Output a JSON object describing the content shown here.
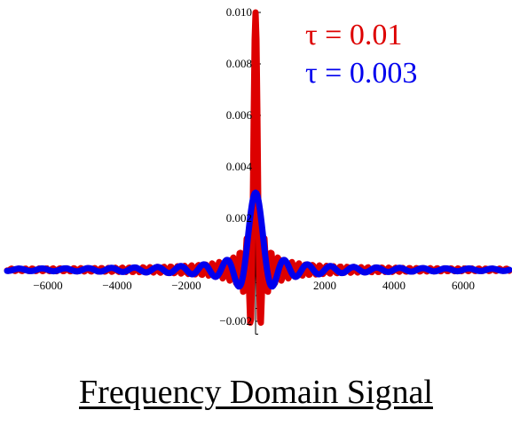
{
  "caption": "Frequency Domain Signal",
  "chart_data": {
    "type": "line",
    "title": "",
    "xlabel": "",
    "ylabel": "",
    "xlim": [
      -7000,
      7000
    ],
    "ylim": [
      -0.0025,
      0.01
    ],
    "x_ticks": [
      -6000,
      -4000,
      -2000,
      2000,
      4000,
      6000
    ],
    "x_tick_labels": [
      "−6000",
      "−4000",
      "−2000",
      "2000",
      "4000",
      "6000"
    ],
    "y_ticks": [
      -0.002,
      0.002,
      0.004,
      0.006,
      0.008,
      0.01
    ],
    "y_tick_labels": [
      "−0.002",
      "0.002",
      "0.004",
      "0.006",
      "0.008",
      "0.010"
    ],
    "grid": false,
    "legend_position": "top-right",
    "series": [
      {
        "name": "τ = 0.01",
        "color": "#dd0000",
        "function": "tau*sinc(pi*f*tau)",
        "tau": 0.01,
        "x": [
          -7000,
          -6000,
          -5000,
          -4000,
          -3000,
          -2000,
          -1500,
          -1000,
          -500,
          0,
          500,
          1000,
          1500,
          2000,
          3000,
          4000,
          5000,
          6000,
          7000
        ],
        "y": [
          0,
          0,
          0,
          0,
          0,
          0,
          0.001,
          0,
          -0.0021,
          0.01,
          -0.0021,
          0,
          0.001,
          0,
          0,
          0,
          0,
          0,
          0
        ]
      },
      {
        "name": "τ = 0.003",
        "color": "#0000ee",
        "function": "tau*sinc(pi*f*tau)",
        "tau": 0.003,
        "x": [
          -7000,
          -5000,
          -3333,
          -2500,
          -1000,
          0,
          1000,
          2500,
          3333,
          5000,
          7000
        ],
        "y": [
          -4e-05,
          0.00036,
          0,
          -0.00065,
          0.0025,
          0.003,
          0.0025,
          -0.00065,
          0,
          0.00036,
          -4e-05
        ]
      }
    ]
  }
}
